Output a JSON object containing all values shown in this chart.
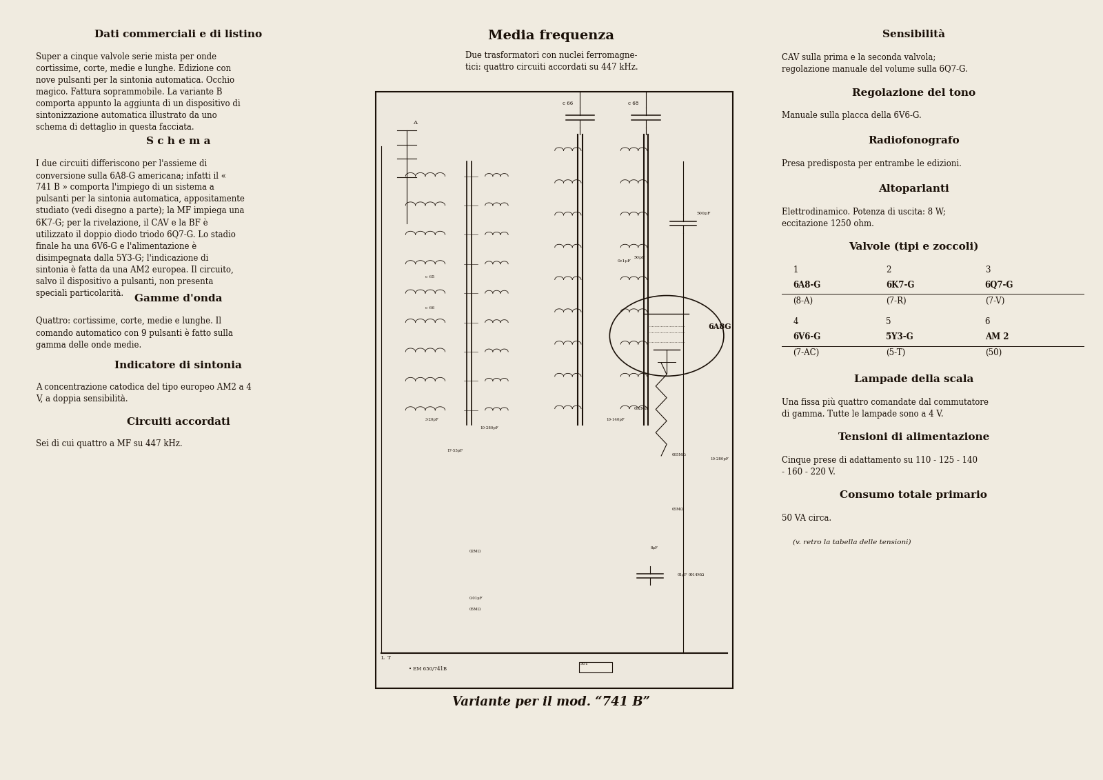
{
  "bg_color": "#f0ebe0",
  "text_color": "#1a1008",
  "font_family": "serif",
  "col1_sections": [
    {
      "type": "heading",
      "text": "Dati commerciali e di listino"
    },
    {
      "type": "body",
      "text": "Super a cinque valvole serie mista per onde cortissime, corte, medie e lunghe. Edizione con nove pulsanti per la sintonia automatica. Occhio magico. Fattura soprammobile. La variante B comporta appunto la aggiunta di un dispositivo di sintonizzazione automatica illustrato da uno schema di dettaglio in questa facciata."
    },
    {
      "type": "heading2",
      "text": "S c h e m a"
    },
    {
      "type": "body",
      "text": "I due circuiti differiscono per l'assieme di conversione sulla 6A8-G americana; infatti il « 741 B » comporta l'impiego di un sistema a pulsanti per la sintonia automatica, appositamente studiato (vedi disegno a parte); la MF impiega una 6K7-G; per la rivelazione, il CAV e la BF è utilizzato il doppio diodo triodo 6Q7-G. Lo stadio finale ha una 6V6-G e l'alimentazione è disimpegnata dalla 5Y3-G; l'indicazione di sintonia è fatta da una AM2 europea. Il circuito, salvo il dispositivo a pulsanti, non presenta speciali particolarità."
    },
    {
      "type": "heading",
      "text": "Gamme d'onda"
    },
    {
      "type": "body",
      "text": "Quattro: cortissime, corte, medie e lunghe. Il comando automatico con 9 pulsanti è fatto sulla gamma delle onde medie."
    },
    {
      "type": "heading",
      "text": "Indicatore di sintonia"
    },
    {
      "type": "body",
      "text": "A concentrazione catodica del tipo europeo AM2 a 4 V, a doppia sensibilità."
    },
    {
      "type": "heading",
      "text": "Circuiti accordati"
    },
    {
      "type": "body",
      "text": "Sei di cui quattro a MF su 447 kHz."
    }
  ],
  "col2_title": "Media frequenza",
  "col2_subtitle": "Due trasformatori con nuclei ferromagne-\ntici: quattro circuiti accordati su 447 kHz.",
  "col2_caption": "Variante per il mod. “741 B”",
  "col3_sections": [
    {
      "type": "heading",
      "text": "Sensibilità"
    },
    {
      "type": "body",
      "text": "CAV sulla prima e la seconda valvola; regolazione manuale del volume sulla 6Q7-G."
    },
    {
      "type": "heading",
      "text": "Regolazione del tono"
    },
    {
      "type": "body",
      "text": "Manuale sulla placca della 6V6-G."
    },
    {
      "type": "heading",
      "text": "Radiofonografo"
    },
    {
      "type": "body",
      "text": "Presa predisposta per entrambe le edizioni."
    },
    {
      "type": "heading",
      "text": "Altoparlanti"
    },
    {
      "type": "body",
      "text": "Elettrodinamico. Potenza di uscita: 8 W; eccitazione 1250 ohm."
    },
    {
      "type": "heading",
      "text": "Valvole (tipi e zoccoli)"
    },
    {
      "type": "table",
      "rows": [
        [
          "1",
          "2",
          "3"
        ],
        [
          "6A8-G",
          "6K7-G",
          "6Q7-G"
        ],
        [
          "(8-A)",
          "(7-R)",
          "(7-V)"
        ],
        [
          "4",
          "5",
          "6"
        ],
        [
          "6V6-G",
          "5Y3-G",
          "AM 2"
        ],
        [
          "(7-AC)",
          "(5-T)",
          "(50)"
        ]
      ]
    },
    {
      "type": "heading",
      "text": "Lampade della scala"
    },
    {
      "type": "body",
      "text": "Una fissa più quattro comandate dal commutatore di gamma. Tutte le lampade sono a 4 V."
    },
    {
      "type": "heading",
      "text": "Tensioni di alimentazione"
    },
    {
      "type": "body",
      "text": "Cinque prese di adattamento su 110 - 125 - 140 - 160 - 220 V."
    },
    {
      "type": "heading",
      "text": "Consumo totale primario"
    },
    {
      "type": "body",
      "text": "50 VA circa."
    },
    {
      "type": "body_italic",
      "text": "(v. retro la tabella delle tensioni)"
    }
  ]
}
